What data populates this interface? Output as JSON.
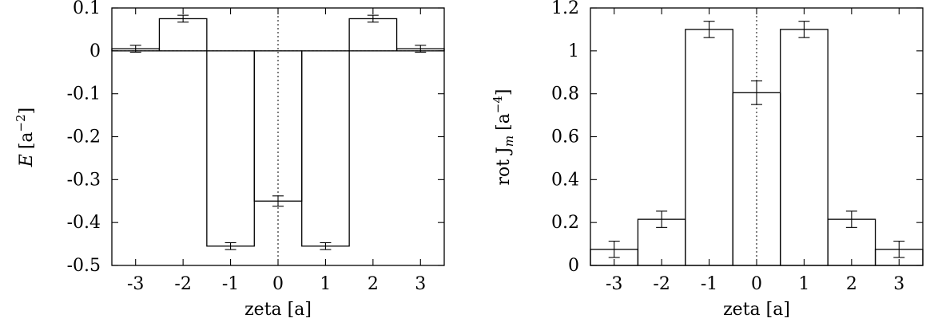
{
  "chart_data": [
    {
      "type": "bar",
      "title": "",
      "xlabel": "zeta [a]",
      "ylabel_main": "E",
      "ylabel_rest": "[a",
      "ylabel_sup": "−2",
      "ylabel_close": "]",
      "x": [
        -3,
        -2,
        -1,
        0,
        1,
        2,
        3
      ],
      "values": [
        0.005,
        0.075,
        -0.455,
        -0.35,
        -0.455,
        0.075,
        0.005
      ],
      "errors": [
        0.008,
        0.008,
        0.008,
        0.012,
        0.008,
        0.008,
        0.008
      ],
      "xlim": [
        -3.5,
        3.5
      ],
      "ylim": [
        -0.5,
        0.1
      ],
      "xticks": [
        -3,
        -2,
        -1,
        0,
        1,
        2,
        3
      ],
      "xtick_labels": [
        "-3",
        "-2",
        "-1",
        "0",
        "1",
        "2",
        "3"
      ],
      "yticks": [
        0.1,
        0,
        -0.1,
        -0.2,
        -0.3,
        -0.4,
        -0.5
      ],
      "ytick_labels": [
        "0.1",
        "0",
        "-0.1",
        "-0.2",
        "-0.3",
        "-0.4",
        "-0.5"
      ],
      "zero_line": true,
      "center_line": true,
      "grid": false,
      "legend": false
    },
    {
      "type": "bar",
      "title": "",
      "xlabel": "zeta [a]",
      "ylabel_main": "rot J",
      "ylabel_sub": "m",
      "ylabel_rest": "[a",
      "ylabel_sup": "−4",
      "ylabel_close": "]",
      "x": [
        -3,
        -2,
        -1,
        0,
        1,
        2,
        3
      ],
      "values": [
        0.075,
        0.215,
        1.1,
        0.805,
        1.1,
        0.215,
        0.075
      ],
      "errors": [
        0.038,
        0.038,
        0.038,
        0.055,
        0.038,
        0.038,
        0.038
      ],
      "xlim": [
        -3.5,
        3.5
      ],
      "ylim": [
        0,
        1.2
      ],
      "xticks": [
        -3,
        -2,
        -1,
        0,
        1,
        2,
        3
      ],
      "xtick_labels": [
        "-3",
        "-2",
        "-1",
        "0",
        "1",
        "2",
        "3"
      ],
      "yticks": [
        1.2,
        1,
        0.8,
        0.6,
        0.4,
        0.2,
        0
      ],
      "ytick_labels": [
        "1.2",
        "1",
        "0.8",
        "0.6",
        "0.4",
        "0.2",
        "0"
      ],
      "zero_line": false,
      "center_line": true,
      "grid": false,
      "legend": false
    }
  ]
}
